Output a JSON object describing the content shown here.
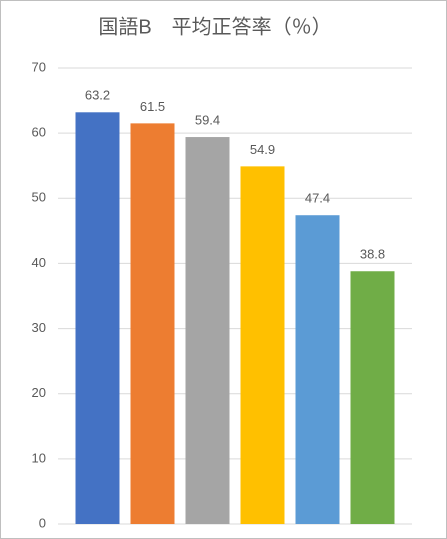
{
  "chart_data": {
    "type": "bar",
    "title": "国語B　平均正答率（％）",
    "categories": [
      null,
      null,
      null,
      null,
      null,
      null
    ],
    "values": [
      63.2,
      61.5,
      59.4,
      54.9,
      47.4,
      38.8
    ],
    "colors": [
      "#4472c4",
      "#ed7d31",
      "#a5a5a5",
      "#ffc000",
      "#5b9bd5",
      "#70ad47"
    ],
    "ylim": [
      0,
      70
    ],
    "yticks": [
      0,
      10,
      20,
      30,
      40,
      50,
      60,
      70
    ],
    "grid": true,
    "data_labels": true
  }
}
